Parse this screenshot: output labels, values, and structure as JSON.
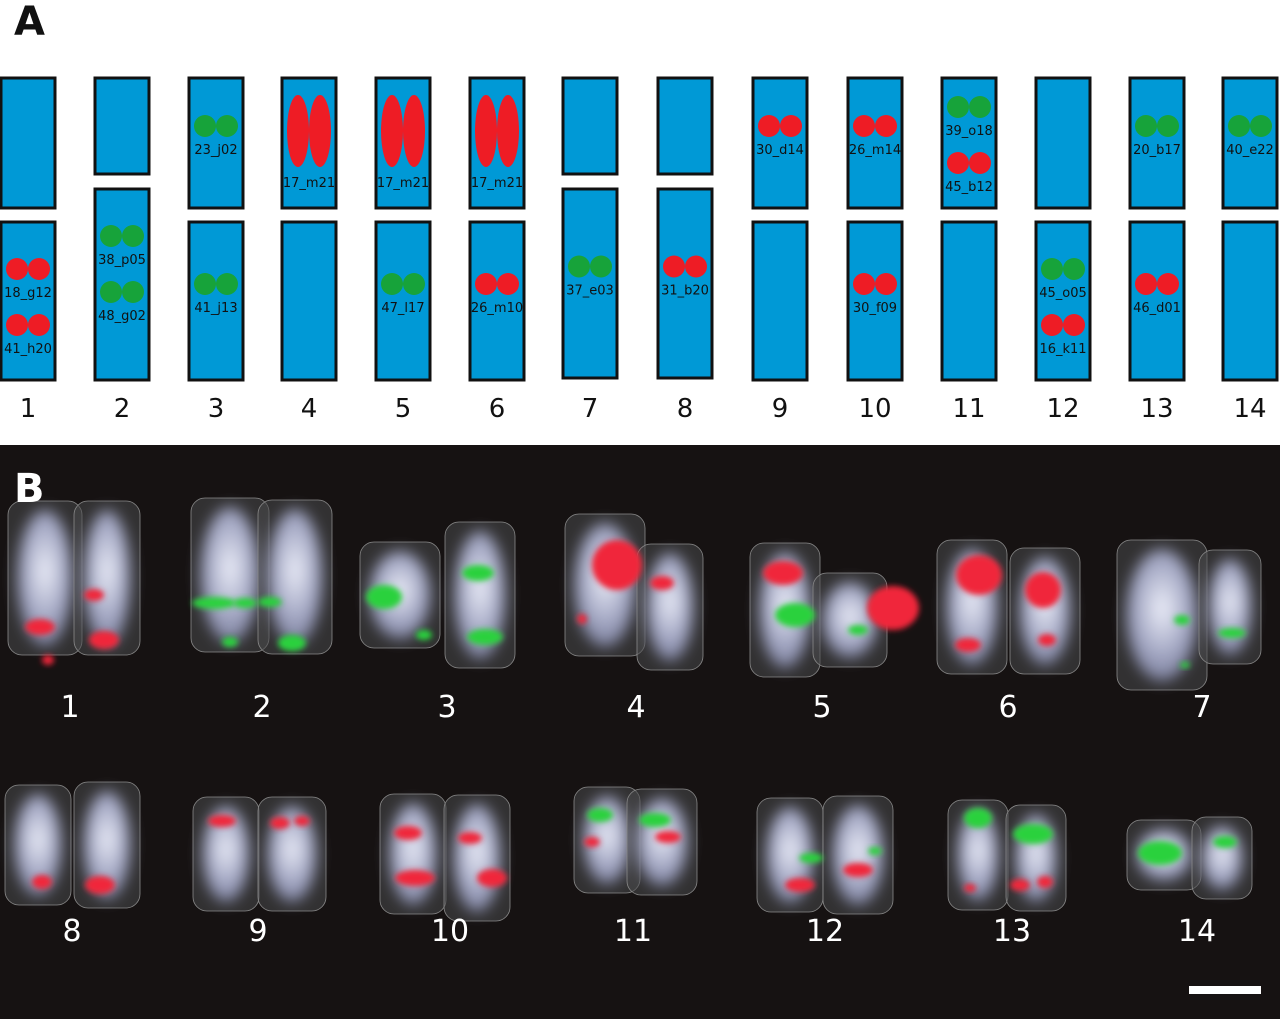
{
  "panel_a": {
    "label": "A",
    "columns": [
      {
        "number": "1",
        "top": {
          "markers": []
        },
        "bottom": {
          "markers": [
            {
              "label": "18_g12",
              "color": "red"
            },
            {
              "label": "41_h20",
              "color": "red"
            }
          ]
        }
      },
      {
        "number": "2",
        "top": {
          "markers": []
        },
        "bottom": {
          "markers": [
            {
              "label": "38_p05",
              "color": "green"
            },
            {
              "label": "48_g02",
              "color": "green"
            }
          ]
        }
      },
      {
        "number": "3",
        "top": {
          "markers": [
            {
              "label": "23_j02",
              "color": "green"
            }
          ]
        },
        "bottom": {
          "markers": [
            {
              "label": "41_j13",
              "color": "green"
            }
          ]
        }
      },
      {
        "number": "4",
        "top": {
          "markers": [
            {
              "label": "17_m21",
              "color": "red",
              "shape": "oval"
            }
          ]
        },
        "bottom": {
          "markers": []
        }
      },
      {
        "number": "5",
        "top": {
          "markers": [
            {
              "label": "17_m21",
              "color": "red",
              "shape": "oval"
            }
          ]
        },
        "bottom": {
          "markers": [
            {
              "label": "47_l17",
              "color": "green"
            }
          ]
        }
      },
      {
        "number": "6",
        "top": {
          "markers": [
            {
              "label": "17_m21",
              "color": "red",
              "shape": "oval"
            }
          ]
        },
        "bottom": {
          "markers": [
            {
              "label": "26_m10",
              "color": "red"
            }
          ]
        }
      },
      {
        "number": "7",
        "top": {
          "markers": []
        },
        "bottom": {
          "markers": [
            {
              "label": "37_e03",
              "color": "green"
            }
          ]
        }
      },
      {
        "number": "8",
        "top": {
          "markers": []
        },
        "bottom": {
          "markers": [
            {
              "label": "31_b20",
              "color": "red"
            }
          ]
        }
      },
      {
        "number": "9",
        "top": {
          "markers": [
            {
              "label": "30_d14",
              "color": "red"
            }
          ]
        },
        "bottom": {
          "markers": []
        }
      },
      {
        "number": "10",
        "top": {
          "markers": [
            {
              "label": "26_m14",
              "color": "red"
            }
          ]
        },
        "bottom": {
          "markers": [
            {
              "label": "30_f09",
              "color": "red"
            }
          ]
        }
      },
      {
        "number": "11",
        "top": {
          "markers": [
            {
              "label": "39_o18",
              "color": "green"
            },
            {
              "label": "45_b12",
              "color": "red"
            }
          ]
        },
        "bottom": {
          "markers": []
        }
      },
      {
        "number": "12",
        "top": {
          "markers": []
        },
        "bottom": {
          "markers": [
            {
              "label": "45_o05",
              "color": "green"
            },
            {
              "label": "16_k11",
              "color": "red"
            }
          ]
        }
      },
      {
        "number": "13",
        "top": {
          "markers": [
            {
              "label": "20_b17",
              "color": "green"
            }
          ]
        },
        "bottom": {
          "markers": [
            {
              "label": "46_d01",
              "color": "red"
            }
          ]
        }
      },
      {
        "number": "14",
        "top": {
          "markers": [
            {
              "label": "40_e22",
              "color": "green"
            }
          ]
        },
        "bottom": {
          "markers": []
        }
      }
    ]
  },
  "panel_b": {
    "label": "B",
    "chromosome_labels": [
      "1",
      "2",
      "3",
      "4",
      "5",
      "6",
      "7",
      "8",
      "9",
      "10",
      "11",
      "12",
      "13",
      "14"
    ],
    "has_scale_bar": true
  },
  "colors": {
    "chromosome_blue": "#0099d6",
    "signal_red": "#ee1c25",
    "signal_green": "#17a33a",
    "outline": "#111111",
    "panel_b_background": "#161212"
  }
}
